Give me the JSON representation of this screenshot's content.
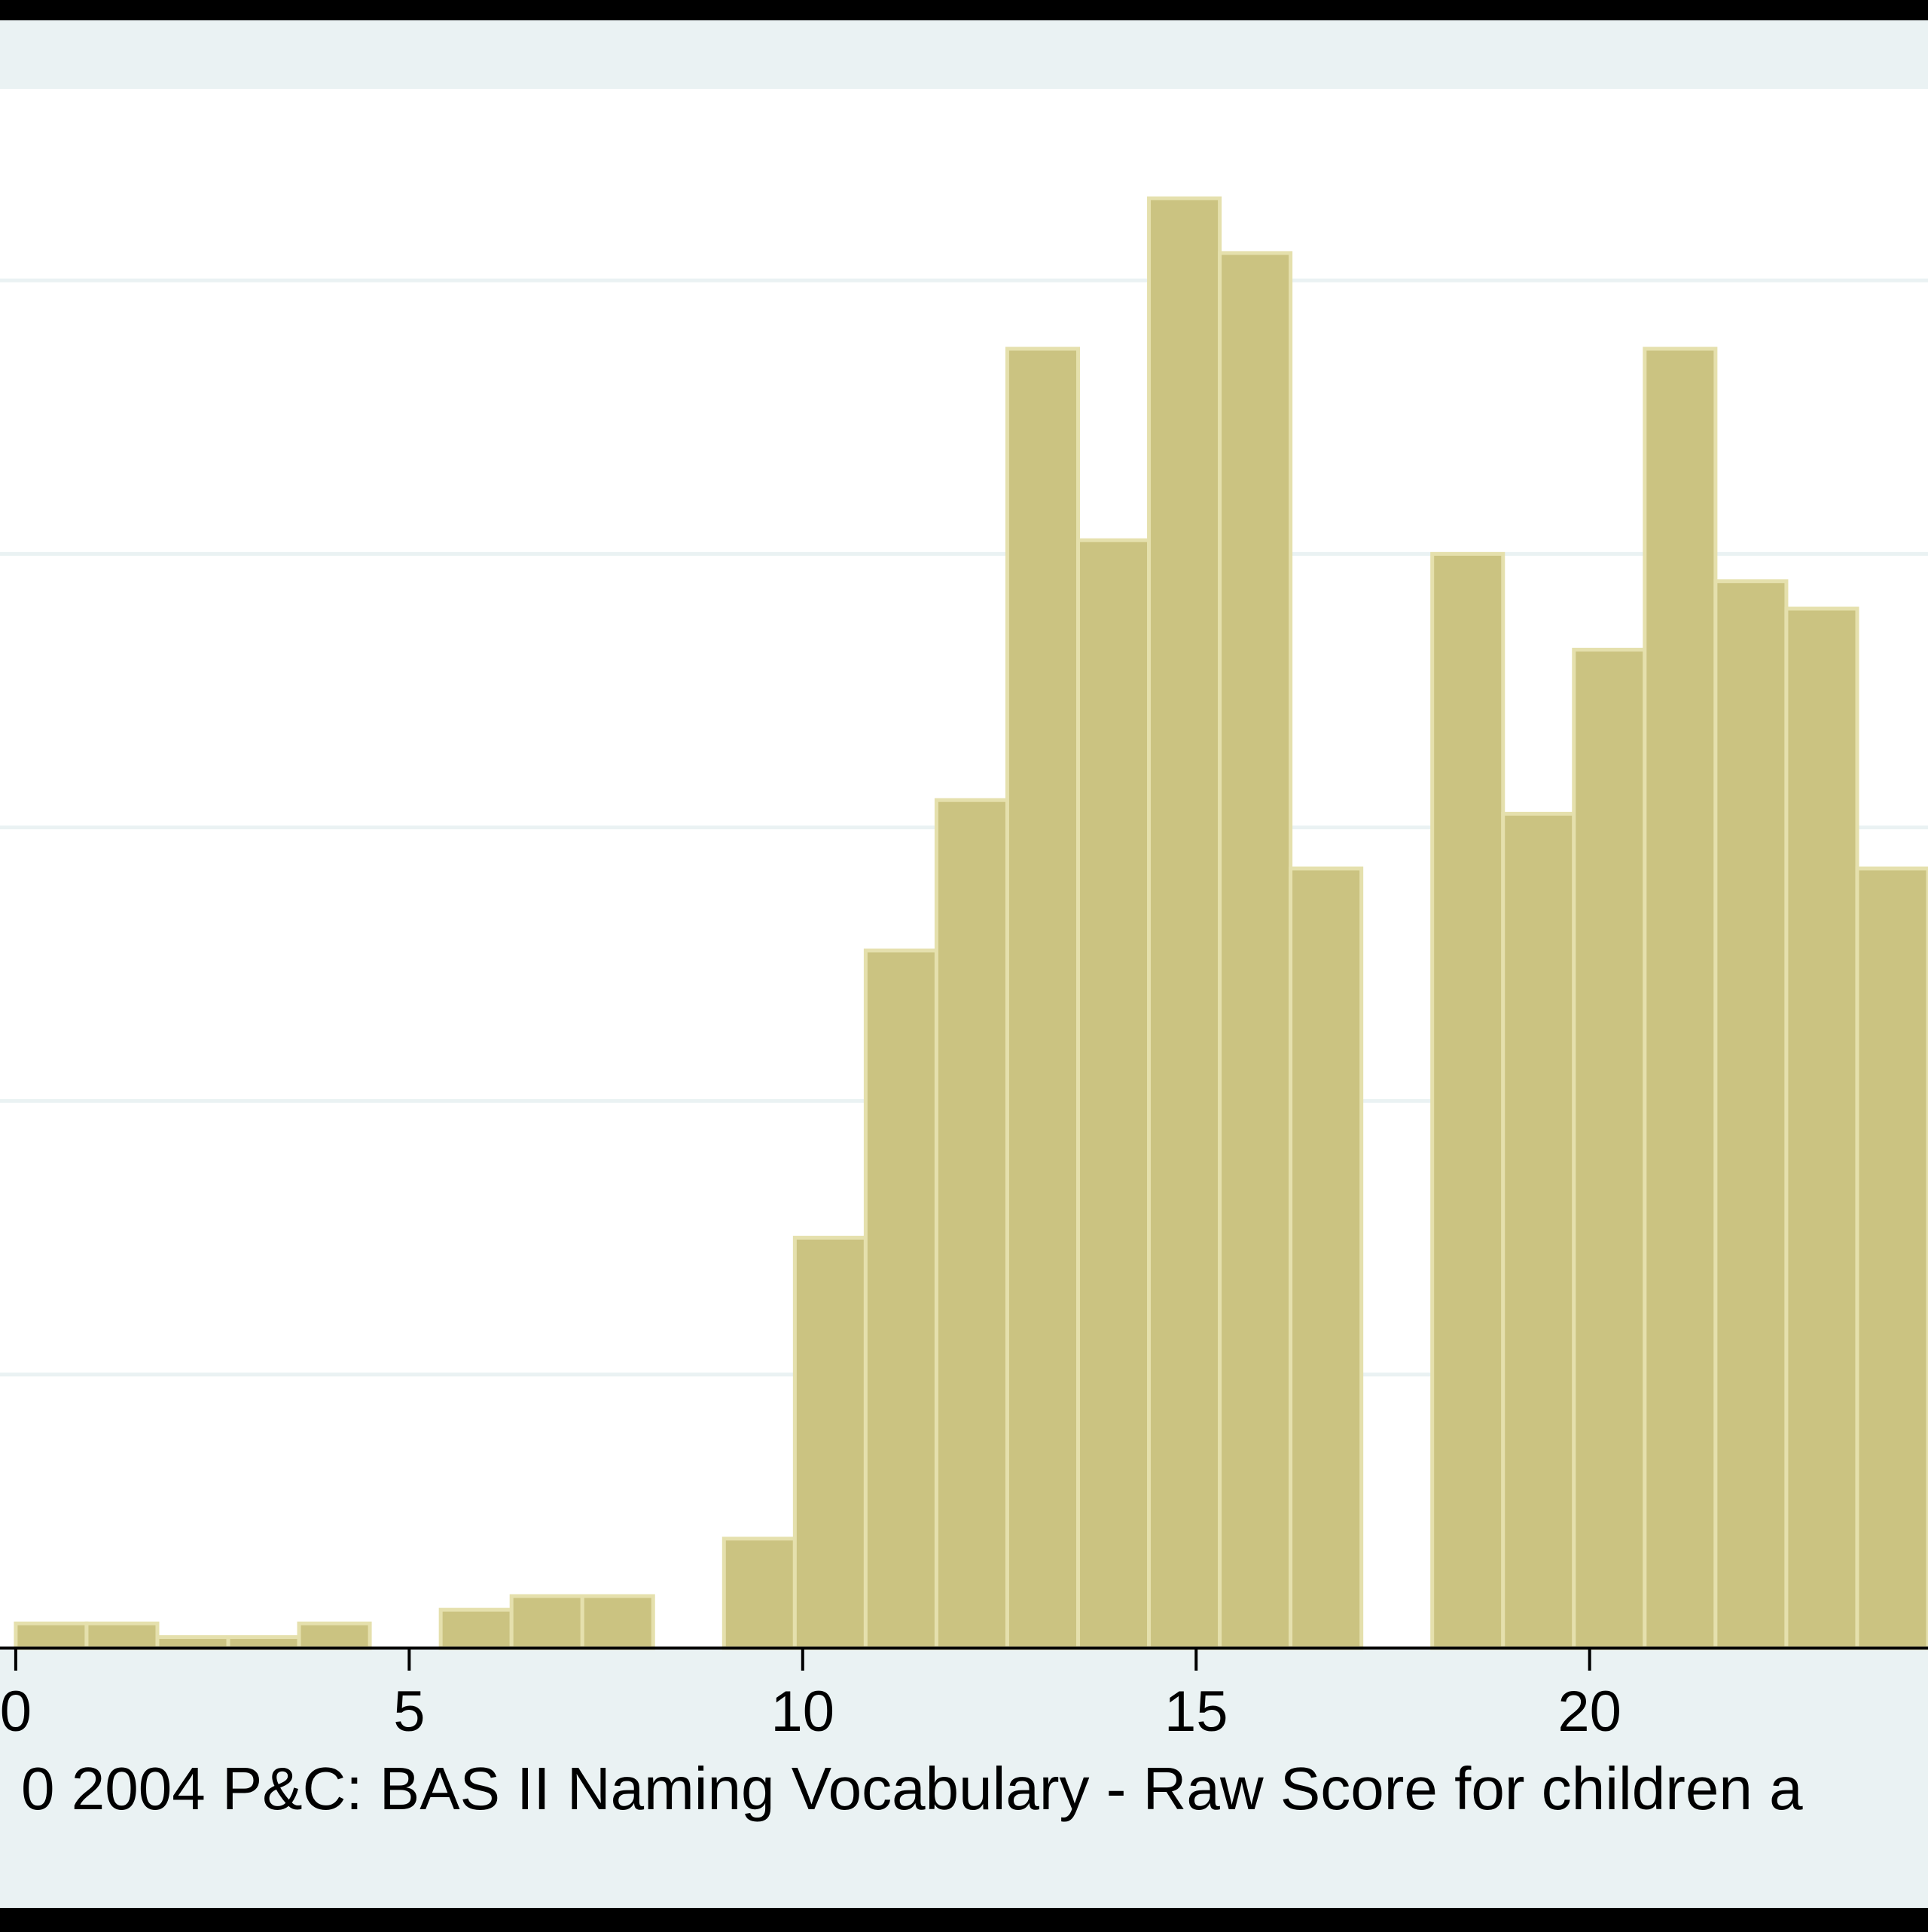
{
  "colors": {
    "frame": "#000000",
    "outer_background": "#eaf2f3",
    "plot_background": "#ffffff",
    "gridline": "#eaf2f3",
    "bar_fill": "#cbc381",
    "bar_outline": "#e5e0ad",
    "axis": "#000000",
    "text": "#000000"
  },
  "chart_data": {
    "type": "bar",
    "title": "",
    "xlabel": "0 2004 P&C: BAS II Naming Vocabulary - Raw Score for children a",
    "ylabel": "",
    "xlim": [
      -0.2,
      24.3
    ],
    "ylim": [
      0,
      0.057
    ],
    "grid": true,
    "grid_y": [
      0.01,
      0.02,
      0.03,
      0.04,
      0.05
    ],
    "legend": "none",
    "bar_width": 0.9,
    "x_ticks": [
      0,
      5,
      10,
      15,
      20
    ],
    "x_tick_labels": [
      "0",
      "5",
      "10",
      "15",
      "20"
    ],
    "bars": [
      {
        "x": 0.0,
        "height": 0.0009
      },
      {
        "x": 0.9,
        "height": 0.0009
      },
      {
        "x": 1.8,
        "height": 0.0004
      },
      {
        "x": 2.7,
        "height": 0.0004
      },
      {
        "x": 3.6,
        "height": 0.0009
      },
      {
        "x": 5.4,
        "height": 0.0014
      },
      {
        "x": 6.3,
        "height": 0.0019
      },
      {
        "x": 7.2,
        "height": 0.0019
      },
      {
        "x": 9.0,
        "height": 0.004
      },
      {
        "x": 9.9,
        "height": 0.015
      },
      {
        "x": 10.8,
        "height": 0.0255
      },
      {
        "x": 11.7,
        "height": 0.031
      },
      {
        "x": 12.6,
        "height": 0.0475
      },
      {
        "x": 13.5,
        "height": 0.0405
      },
      {
        "x": 14.4,
        "height": 0.053
      },
      {
        "x": 15.3,
        "height": 0.051
      },
      {
        "x": 16.2,
        "height": 0.0285
      },
      {
        "x": 18.0,
        "height": 0.04
      },
      {
        "x": 18.9,
        "height": 0.0305
      },
      {
        "x": 19.8,
        "height": 0.0365
      },
      {
        "x": 20.7,
        "height": 0.0475
      },
      {
        "x": 21.6,
        "height": 0.039
      },
      {
        "x": 22.5,
        "height": 0.038
      },
      {
        "x": 23.4,
        "height": 0.0285
      }
    ]
  }
}
